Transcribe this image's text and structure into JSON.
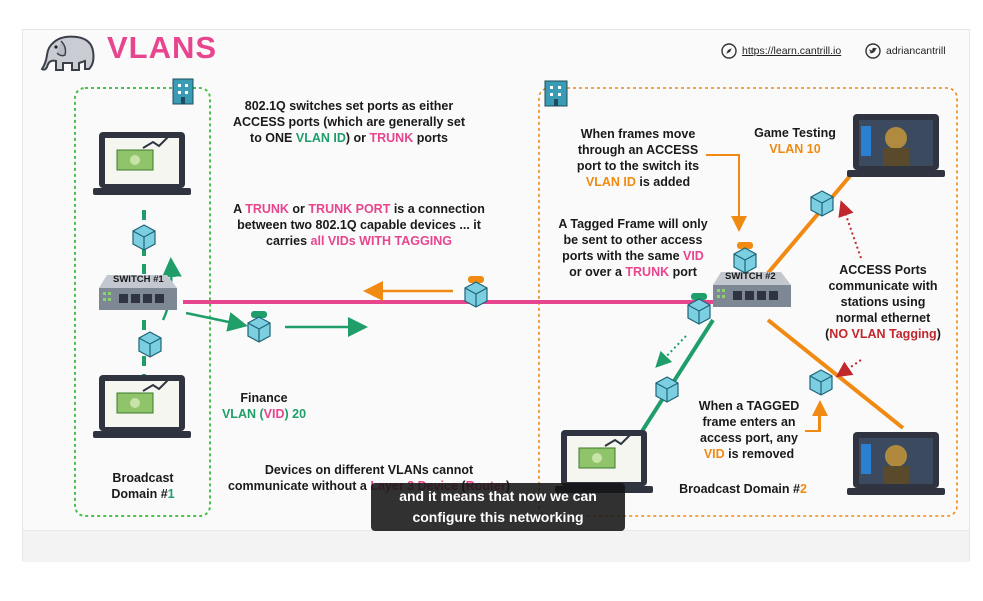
{
  "title": "VLANS",
  "header": {
    "website": "https://learn.cantrill.io",
    "twitter": "adriancantrill"
  },
  "notes": {
    "n1": [
      "802.1Q switches set ports as either",
      "ACCESS ports (which are generally set",
      "to ONE ",
      "VLAN ID",
      ") or ",
      "TRUNK",
      " ports"
    ],
    "n2": [
      "A ",
      "TRUNK",
      " or ",
      "TRUNK PORT",
      " is a connection",
      "between two 802.1Q capable devices ... it",
      "carries ",
      "all VIDs WITH TAGGING"
    ],
    "n3": [
      "When frames move",
      "through an ACCESS",
      "port to the switch its",
      "VLAN ID",
      " is added"
    ],
    "n4": [
      "A Tagged Frame will only",
      "be sent to other access",
      "ports with the same ",
      "VID",
      "or over a ",
      "TRUNK",
      " port"
    ],
    "n5": [
      "ACCESS Ports",
      "communicate with",
      "stations using",
      "normal ethernet",
      "(",
      "NO VLAN Tagging",
      ")"
    ],
    "n6": [
      "When a TAGGED",
      "frame enters an",
      "access port, any",
      "VID",
      " is removed"
    ],
    "n7": [
      "Devices on different VLANs cannot",
      "communicate without a ",
      "Layer 3 Device",
      " (",
      "Router",
      ")"
    ],
    "finance": [
      "Finance",
      "VLAN (",
      "VID",
      ") 20"
    ],
    "game": [
      "Game Testing",
      "VLAN 10"
    ],
    "bd1": [
      "Broadcast",
      "Domain #",
      "1"
    ],
    "bd2": [
      "Broadcast Domain #",
      "2"
    ]
  },
  "switches": {
    "s1": "SWITCH #1",
    "s2": "SWITCH #2"
  },
  "caption": [
    "and it means that now we can",
    "configure this networking"
  ],
  "colors": {
    "pink": "#e8458f",
    "green": "#1f9e6a",
    "orange": "#f08a12",
    "red": "#c1272d"
  },
  "icons": [
    "elephant-logo",
    "compass-icon",
    "twitter-icon",
    "building-icon",
    "laptop-icon",
    "switch-icon",
    "frame-cube-icon"
  ]
}
